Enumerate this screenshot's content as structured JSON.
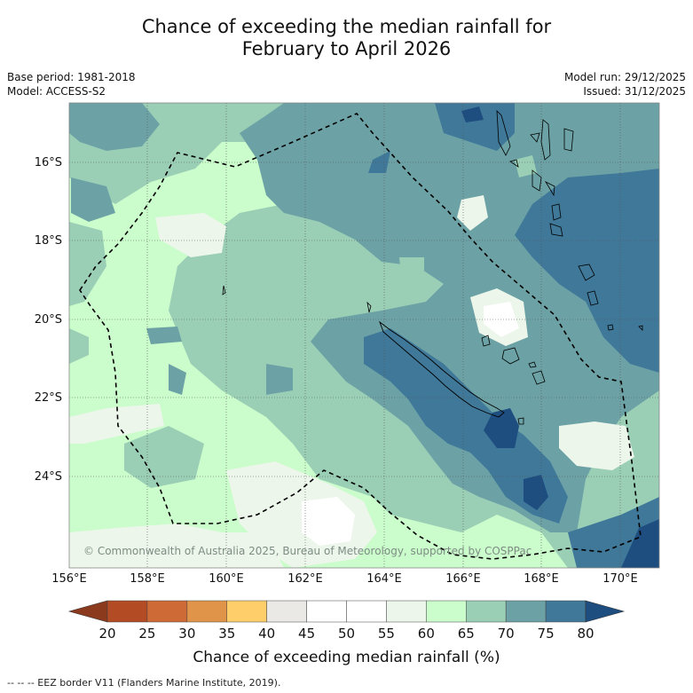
{
  "title": {
    "line1": "Chance of exceeding the median rainfall for",
    "line2": "February to April 2026"
  },
  "meta_left": {
    "base_period": "Base period: 1981-2018",
    "model": "Model: ACCESS-S2"
  },
  "meta_right": {
    "model_run": "Model run: 29/12/2025",
    "issued": "Issued: 31/12/2025"
  },
  "map": {
    "lat_labels": [
      "16°S",
      "18°S",
      "20°S",
      "22°S",
      "24°S"
    ],
    "lon_labels": [
      "156°E",
      "158°E",
      "160°E",
      "162°E",
      "164°E",
      "166°E",
      "168°E",
      "170°E"
    ],
    "copyright": "© Commonwealth of Australia 2025, Bureau of Meteorology, supported by COSPPac",
    "features": [
      "New Caledonia",
      "Vanuatu",
      "EEZ border"
    ]
  },
  "colorbar": {
    "ticks": [
      "20",
      "25",
      "30",
      "35",
      "40",
      "45",
      "50",
      "55",
      "60",
      "65",
      "70",
      "75",
      "80"
    ],
    "colors": [
      "#b34b25",
      "#cd6a35",
      "#e0944a",
      "#fece6a",
      "#ebe9e6",
      "#ffffff",
      "#ffffff",
      "#ecf6ea",
      "#cbfccb",
      "#9acfb6",
      "#6ca2a5",
      "#3f7898"
    ],
    "low_extend_color": "#8b3a1e",
    "high_extend_color": "#1e4d80",
    "label": "Chance of exceeding median rainfall (%)"
  },
  "footnote": "-- -- -- EEZ border V11 (Flanders Marine Institute, 2019)."
}
